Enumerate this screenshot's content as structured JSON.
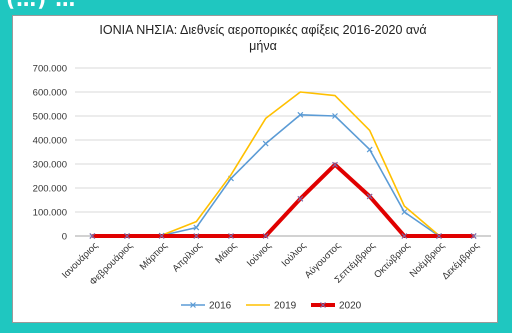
{
  "top_text": "(…) …",
  "chart_data": {
    "type": "line",
    "title_line1": "ΙΟΝΙΑ ΝΗΣΙΑ: Διεθνείς αεροπορικές αφίξεις  2016-2020 ανά",
    "title_line2": "μήνα",
    "xlabel": "",
    "ylabel": "",
    "categories": [
      "Ιανουάριος",
      "Φεβρουάριος",
      "Μάρτιος",
      "Απρίλιος",
      "Μάιος",
      "Ιούνιος",
      "Ιούλιος",
      "Αύγουστος",
      "Σεπτέμβριος",
      "Οκτώβριος",
      "Νοέμβριος",
      "Δεκέμβριος"
    ],
    "y_ticks": [
      "0",
      "100.000",
      "200.000",
      "300.000",
      "400.000",
      "500.000",
      "600.000",
      "700.000"
    ],
    "ylim": [
      0,
      700000
    ],
    "grid": true,
    "legend_position": "bottom",
    "series": [
      {
        "name": "2016",
        "color": "#5b9bd5",
        "marker": "x",
        "values": [
          0,
          0,
          2000,
          35000,
          240000,
          385000,
          505000,
          500000,
          360000,
          100000,
          0,
          0
        ]
      },
      {
        "name": "2019",
        "color": "#ffc000",
        "marker": "none",
        "values": [
          0,
          0,
          3000,
          60000,
          255000,
          490000,
          600000,
          585000,
          440000,
          125000,
          2000,
          0
        ]
      },
      {
        "name": "2020",
        "color": "#e00000",
        "marker": "x",
        "values": [
          0,
          0,
          0,
          0,
          0,
          0,
          155000,
          297000,
          165000,
          0,
          0,
          0
        ]
      }
    ]
  }
}
